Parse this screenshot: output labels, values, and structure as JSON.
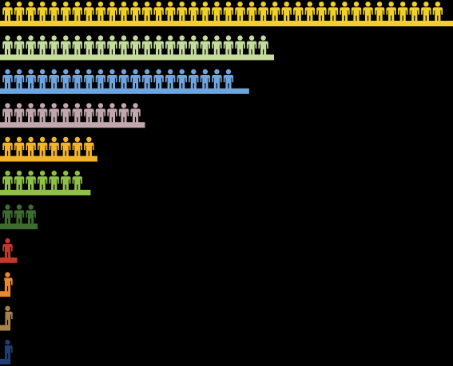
{
  "chart_data": {
    "type": "bar",
    "style": "pictograph-person-icons",
    "orientation": "horizontal",
    "background": "#000000",
    "axes_shown": false,
    "gridlines": false,
    "legend": "none",
    "icon": "person-icon",
    "rows": [
      {
        "value": 100,
        "icons": 38,
        "color": "#F0D02A"
      },
      {
        "value": 60.5,
        "icons": 23,
        "color": "#C5DC9C"
      },
      {
        "value": 55,
        "icons": 20,
        "color": "#6FA5DF"
      },
      {
        "value": 32,
        "icons": 12,
        "color": "#C2A8AE"
      },
      {
        "value": 21.5,
        "icons": 8,
        "color": "#F2B42A"
      },
      {
        "value": 20,
        "icons": 7,
        "color": "#8FBF4A"
      },
      {
        "value": 8.3,
        "icons": 3,
        "color": "#3E6B2E"
      },
      {
        "value": 3.8,
        "icons": 1,
        "color": "#C0392B"
      },
      {
        "value": 2.3,
        "icons": 0.85,
        "color": "#E98A2C"
      },
      {
        "value": 2.3,
        "icons": 0.75,
        "color": "#A8834B"
      },
      {
        "value": 2.3,
        "icons": 0.8,
        "color": "#1F3F73"
      }
    ]
  }
}
